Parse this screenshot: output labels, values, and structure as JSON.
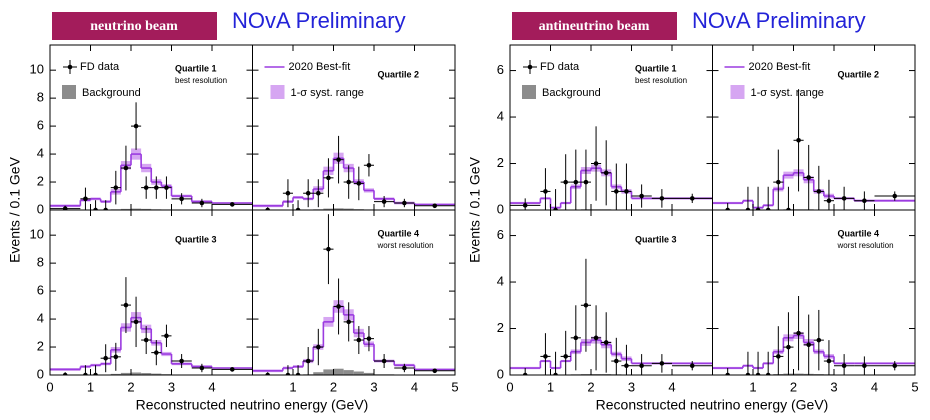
{
  "chart_data": [
    {
      "type": "histogram",
      "label": "neutrino beam",
      "title": "NOvA Preliminary",
      "xlabel": "Reconstructed neutrino energy (GeV)",
      "ylabel": "Events / 0.1 GeV",
      "xlim": [
        0,
        5
      ],
      "ylim": [
        0,
        11.8
      ],
      "xticks": [
        0,
        1,
        2,
        3,
        4,
        5
      ],
      "yticks": [
        0,
        2,
        4,
        6,
        8,
        10
      ],
      "legend": {
        "data": "FD data",
        "background": "Background",
        "prediction": "2020 Best-fit",
        "band": "1-σ syst. range"
      },
      "colors": {
        "prediction": "#9b3be0",
        "band": "#d6a6f2",
        "background": "#8c8c8c",
        "data": "#000000",
        "banner": "#a31c5b"
      },
      "bins": [
        0,
        0.75,
        1.0,
        1.25,
        1.5,
        1.75,
        2.0,
        2.25,
        2.5,
        2.75,
        3.0,
        3.5,
        4.0,
        5.0
      ],
      "panels": [
        {
          "title": "Quartile 1",
          "subtitle": "best resolution",
          "data": [
            0.1,
            0.8,
            0,
            0,
            1.6,
            3.0,
            6.0,
            1.6,
            1.6,
            1.6,
            0.8,
            0.5,
            0.4
          ],
          "errors": [
            0.2,
            0.8,
            0.7,
            0.7,
            1.2,
            1.6,
            1.7,
            0.8,
            0.8,
            0.8,
            0.4,
            0.3,
            0.15
          ],
          "prediction": [
            0.3,
            0.7,
            0.8,
            0.6,
            1.3,
            3.2,
            4.0,
            3.0,
            2.0,
            1.7,
            1.0,
            0.6,
            0.5
          ],
          "syst": [
            0.1,
            0.1,
            0.1,
            0.1,
            0.2,
            0.3,
            0.4,
            0.3,
            0.2,
            0.15,
            0.1,
            0.1,
            0.05
          ],
          "background": [
            0,
            0,
            0,
            0.02,
            0.05,
            0.08,
            0.1,
            0.08,
            0.05,
            0.04,
            0.02,
            0.01,
            0.01
          ]
        },
        {
          "title": "Quartile 2",
          "data": [
            0,
            1.2,
            0,
            1.2,
            1.2,
            2.3,
            3.6,
            2.0,
            1.9,
            3.2,
            0.6,
            0.5,
            0.3
          ],
          "errors": [
            0.2,
            1.0,
            0.7,
            1.0,
            1.0,
            1.4,
            1.7,
            1.2,
            1.2,
            0.8,
            0.4,
            0.3,
            0.15
          ],
          "prediction": [
            0.3,
            0.6,
            0.9,
            0.8,
            1.5,
            2.8,
            3.7,
            3.0,
            2.0,
            1.4,
            0.8,
            0.5,
            0.4
          ],
          "syst": [
            0.1,
            0.1,
            0.1,
            0.1,
            0.2,
            0.3,
            0.4,
            0.3,
            0.2,
            0.15,
            0.1,
            0.1,
            0.05
          ],
          "background": [
            0,
            0,
            0,
            0.02,
            0.05,
            0.1,
            0.12,
            0.1,
            0.06,
            0.04,
            0.02,
            0.01,
            0.01
          ]
        },
        {
          "title": "Quartile 3",
          "data": [
            0,
            0,
            0,
            1.2,
            1.3,
            5.0,
            3.8,
            2.5,
            1.6,
            2.8,
            1.0,
            0.5,
            0.4
          ],
          "errors": [
            0.2,
            0.7,
            0.7,
            1.0,
            1.0,
            2.0,
            1.8,
            1.0,
            0.9,
            0.8,
            0.5,
            0.3,
            0.15
          ],
          "prediction": [
            0.4,
            0.6,
            0.7,
            0.8,
            1.8,
            3.4,
            4.1,
            3.3,
            2.3,
            1.5,
            0.8,
            0.6,
            0.5
          ],
          "syst": [
            0.1,
            0.1,
            0.1,
            0.1,
            0.2,
            0.3,
            0.4,
            0.3,
            0.2,
            0.15,
            0.1,
            0.1,
            0.05
          ],
          "background": [
            0,
            0,
            0,
            0.03,
            0.08,
            0.15,
            0.18,
            0.14,
            0.1,
            0.06,
            0.03,
            0.02,
            0.01
          ]
        },
        {
          "title": "Quartile 4",
          "subtitle": "worst resolution",
          "data": [
            0,
            0,
            0,
            1.0,
            2.0,
            9.0,
            4.9,
            3.8,
            2.5,
            2.6,
            1.0,
            0.5,
            0.3
          ],
          "errors": [
            0.2,
            0.7,
            0.7,
            1.0,
            1.3,
            2.5,
            2.0,
            1.4,
            1.0,
            0.9,
            0.5,
            0.3,
            0.15
          ],
          "prediction": [
            0.3,
            0.5,
            0.6,
            1.0,
            2.0,
            3.8,
            4.9,
            4.3,
            3.0,
            2.2,
            1.0,
            0.7,
            0.4
          ],
          "syst": [
            0.1,
            0.1,
            0.1,
            0.15,
            0.2,
            0.35,
            0.45,
            0.4,
            0.3,
            0.2,
            0.1,
            0.1,
            0.05
          ],
          "background": [
            0,
            0,
            0,
            0.05,
            0.2,
            0.4,
            0.45,
            0.35,
            0.25,
            0.15,
            0.05,
            0.03,
            0.02
          ]
        }
      ]
    },
    {
      "type": "histogram",
      "label": "antineutrino beam",
      "title": "NOvA Preliminary",
      "xlabel": "Reconstructed neutrino energy (GeV)",
      "ylabel": "Events / 0.1 GeV",
      "xlim": [
        0,
        5
      ],
      "ylim": [
        0,
        7.1
      ],
      "xticks": [
        0,
        1,
        2,
        3,
        4,
        5
      ],
      "yticks": [
        0,
        2,
        4,
        6
      ],
      "legend": {
        "data": "FD data",
        "background": "Background",
        "prediction": "2020 Best-fit",
        "band": "1-σ syst. range"
      },
      "colors": {
        "prediction": "#9b3be0",
        "band": "#d6a6f2",
        "background": "#8c8c8c",
        "data": "#000000",
        "banner": "#a31c5b"
      },
      "bins": [
        0,
        0.75,
        1.0,
        1.25,
        1.5,
        1.75,
        2.0,
        2.25,
        2.5,
        2.75,
        3.0,
        3.5,
        4.0,
        5.0
      ],
      "panels": [
        {
          "title": "Quartile 1",
          "subtitle": "best resolution",
          "data": [
            0.2,
            0.8,
            0,
            1.2,
            1.2,
            1.2,
            2.0,
            1.6,
            0.8,
            0.8,
            0.6,
            0.5,
            0.5
          ],
          "errors": [
            0.3,
            1.0,
            0.9,
            1.2,
            1.4,
            1.4,
            1.6,
            1.4,
            1.2,
            1.2,
            0.5,
            0.4,
            0.2
          ],
          "prediction": [
            0.3,
            0.5,
            0.1,
            0.3,
            1.0,
            1.7,
            1.8,
            1.6,
            1.0,
            0.8,
            0.5,
            0.5,
            0.5
          ],
          "syst": [
            0.05,
            0.05,
            0.05,
            0.05,
            0.1,
            0.15,
            0.15,
            0.15,
            0.1,
            0.1,
            0.05,
            0.05,
            0.05
          ],
          "background": [
            0,
            0,
            0,
            0.01,
            0.02,
            0.03,
            0.03,
            0.03,
            0.02,
            0.02,
            0.01,
            0.01,
            0.01
          ]
        },
        {
          "title": "Quartile 2",
          "data": [
            0,
            0,
            0,
            0,
            1.2,
            0,
            3.0,
            1.4,
            0.8,
            0.4,
            0.5,
            0.4,
            0.6
          ],
          "errors": [
            0.3,
            1.0,
            1.0,
            1.0,
            1.4,
            1.0,
            2.2,
            1.4,
            1.1,
            0.9,
            0.5,
            0.4,
            0.2
          ],
          "prediction": [
            0.3,
            0.4,
            0.1,
            0.2,
            0.9,
            1.5,
            1.6,
            1.3,
            0.8,
            0.6,
            0.5,
            0.4,
            0.4
          ],
          "syst": [
            0.05,
            0.05,
            0.05,
            0.05,
            0.1,
            0.15,
            0.15,
            0.15,
            0.1,
            0.1,
            0.05,
            0.05,
            0.05
          ],
          "background": [
            0,
            0,
            0,
            0.01,
            0.02,
            0.03,
            0.03,
            0.03,
            0.02,
            0.02,
            0.01,
            0.01,
            0.01
          ]
        },
        {
          "title": "Quartile 3",
          "data": [
            0,
            0.8,
            0,
            0.8,
            1.6,
            3.0,
            1.6,
            1.4,
            0.6,
            0.4,
            0.4,
            0.5,
            0.4
          ],
          "errors": [
            0.3,
            1.0,
            1.0,
            1.1,
            1.4,
            2.0,
            1.4,
            1.3,
            1.0,
            0.9,
            0.5,
            0.4,
            0.2
          ],
          "prediction": [
            0.3,
            0.6,
            0.3,
            0.6,
            1.0,
            1.4,
            1.5,
            1.3,
            0.9,
            0.7,
            0.5,
            0.5,
            0.5
          ],
          "syst": [
            0.05,
            0.05,
            0.05,
            0.05,
            0.1,
            0.15,
            0.15,
            0.15,
            0.1,
            0.1,
            0.05,
            0.05,
            0.05
          ],
          "background": [
            0,
            0,
            0,
            0.01,
            0.03,
            0.04,
            0.04,
            0.04,
            0.03,
            0.02,
            0.01,
            0.01,
            0.01
          ]
        },
        {
          "title": "Quartile 4",
          "subtitle": "worst resolution",
          "data": [
            0,
            0,
            0,
            0,
            0.8,
            1.2,
            1.8,
            1.3,
            1.5,
            0.6,
            0.4,
            0.4,
            0.4
          ],
          "errors": [
            0.3,
            1.0,
            1.0,
            1.0,
            1.3,
            1.5,
            1.6,
            1.3,
            1.3,
            0.9,
            0.5,
            0.4,
            0.2
          ],
          "prediction": [
            0.3,
            0.4,
            0.3,
            0.5,
            1.0,
            1.6,
            1.7,
            1.4,
            1.0,
            0.8,
            0.5,
            0.5,
            0.5
          ],
          "syst": [
            0.05,
            0.05,
            0.05,
            0.05,
            0.1,
            0.15,
            0.15,
            0.15,
            0.1,
            0.1,
            0.05,
            0.05,
            0.05
          ],
          "background": [
            0,
            0,
            0,
            0.01,
            0.04,
            0.06,
            0.06,
            0.05,
            0.04,
            0.03,
            0.02,
            0.01,
            0.01
          ]
        }
      ]
    }
  ]
}
